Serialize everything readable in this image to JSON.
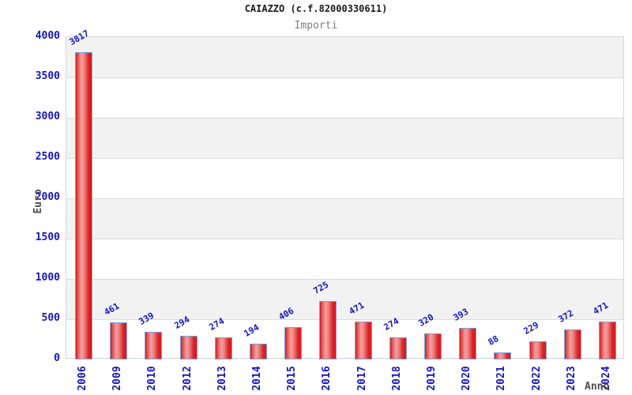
{
  "chart_data": {
    "type": "bar",
    "title": "CAIAZZO (c.f.82000330611)",
    "subtitle": "Importi",
    "xlabel": "Anno",
    "ylabel": "Euro",
    "categories": [
      "2006",
      "2009",
      "2010",
      "2012",
      "2013",
      "2014",
      "2015",
      "2016",
      "2017",
      "2018",
      "2019",
      "2020",
      "2021",
      "2022",
      "2023",
      "2024"
    ],
    "values": [
      3817,
      461,
      339,
      294,
      274,
      194,
      406,
      725,
      471,
      274,
      320,
      393,
      88,
      229,
      372,
      471
    ],
    "ylim": [
      0,
      4000
    ],
    "ytick_step": 500,
    "y_ticks": [
      0,
      500,
      1000,
      1500,
      2000,
      2500,
      3000,
      3500,
      4000
    ],
    "grid": "horizontal-bands-alternating",
    "legend": "none",
    "bar_labels_rotation_deg": -30,
    "x_tick_rotation_deg": -90
  },
  "colors": {
    "title": "#1a1a1a",
    "subtitle": "#808080",
    "tick_label": "#1414cc",
    "value_label": "#1414cc",
    "axis_title": "#4d4d4d",
    "band_gray": "#f2f2f2",
    "gridline": "#dcdcdc",
    "plot_border": "#d6d6d6",
    "baseline": "#c9d2e0",
    "bar_edge_red": "#e31414",
    "bar_highlight": "#f0a2a2",
    "bar_border_blue": "#6fa8e8",
    "background": "#ffffff"
  }
}
